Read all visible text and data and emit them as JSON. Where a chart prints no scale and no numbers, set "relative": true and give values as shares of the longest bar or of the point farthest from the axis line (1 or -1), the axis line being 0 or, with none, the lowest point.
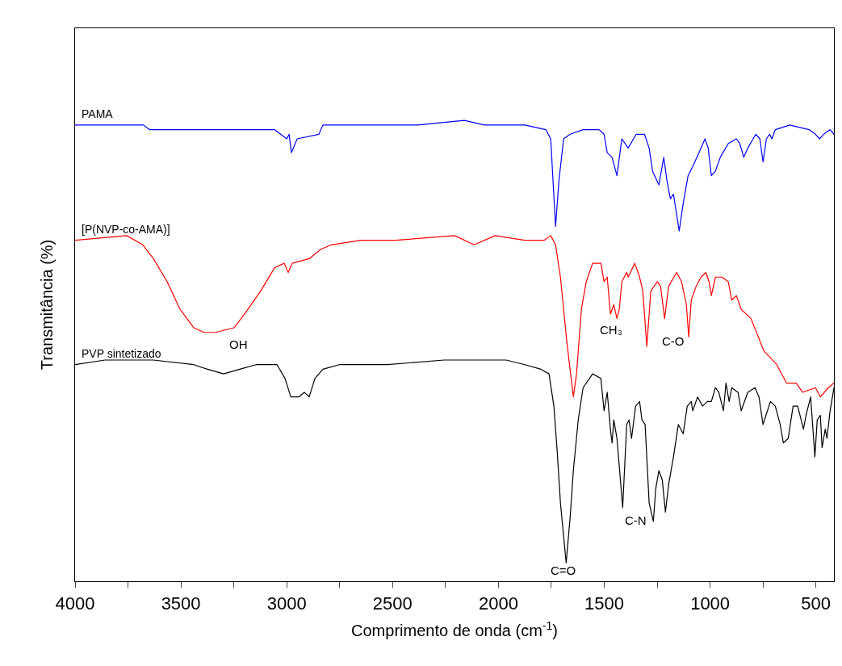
{
  "chart_data": {
    "type": "line",
    "relative": true,
    "xlabel": "Comprimento de onda (cm$^{-1}$)",
    "ylabel": "Transmitância (%)",
    "xlim": [
      4000,
      415
    ],
    "xticks": [
      4000,
      {
        "value": 3750,
        "label": null
      },
      3500,
      {
        "value": 3250,
        "label": null
      },
      3000,
      {
        "value": 2750,
        "label": null
      },
      2500,
      {
        "value": 2250,
        "label": null
      },
      2000,
      {
        "value": 1750,
        "label": null
      },
      1500,
      {
        "value": 1250,
        "label": null
      },
      1000,
      {
        "value": 750,
        "label": null
      },
      500
    ],
    "legend": false,
    "marker": "none",
    "line_style": "solid",
    "series": [
      {
        "name": "PAMA",
        "color": "#0000ff",
        "x": [
          4000,
          3676,
          3649,
          3058,
          3000,
          2989,
          2978,
          2951,
          2848,
          2829,
          2382,
          2161,
          2066,
          1913,
          1875,
          1776,
          1753,
          1730,
          1714,
          1692,
          1661,
          1600,
          1524,
          1501,
          1486,
          1463,
          1440,
          1417,
          1402,
          1387,
          1349,
          1310,
          1288,
          1272,
          1242,
          1219,
          1204,
          1188,
          1173,
          1146,
          1127,
          1104,
          1082,
          1043,
          1024,
          1009,
          994,
          975,
          952,
          914,
          876,
          860,
          841,
          822,
          784,
          765,
          750,
          734,
          719,
          708,
          692,
          624,
          532,
          502,
          483,
          463,
          433,
          415
        ],
        "values": [
          0.99,
          0.99,
          0.98,
          0.98,
          0.96,
          0.97,
          0.93,
          0.96,
          0.97,
          0.99,
          0.99,
          1.0,
          0.99,
          0.99,
          0.99,
          0.98,
          0.96,
          0.77,
          0.87,
          0.96,
          0.97,
          0.98,
          0.98,
          0.97,
          0.93,
          0.92,
          0.88,
          0.96,
          0.95,
          0.94,
          0.97,
          0.97,
          0.94,
          0.89,
          0.86,
          0.92,
          0.87,
          0.83,
          0.84,
          0.76,
          0.82,
          0.88,
          0.9,
          0.94,
          0.96,
          0.94,
          0.88,
          0.89,
          0.92,
          0.95,
          0.96,
          0.95,
          0.92,
          0.94,
          0.97,
          0.96,
          0.91,
          0.96,
          0.97,
          0.96,
          0.98,
          0.99,
          0.98,
          0.97,
          0.96,
          0.97,
          0.98,
          0.97
        ]
      },
      {
        "name": "[P(NVP-co-AMA)]",
        "color": "#ff0000",
        "x": [
          4000,
          3756,
          3680,
          3630,
          3565,
          3504,
          3439,
          3390,
          3337,
          3249,
          3199,
          3123,
          3058,
          3012,
          2993,
          2974,
          2894,
          2840,
          2791,
          2650,
          2485,
          2207,
          2115,
          2016,
          1875,
          1783,
          1753,
          1730,
          1707,
          1677,
          1646,
          1631,
          1608,
          1585,
          1555,
          1516,
          1501,
          1486,
          1471,
          1455,
          1440,
          1429,
          1417,
          1394,
          1387,
          1356,
          1333,
          1318,
          1299,
          1280,
          1249,
          1234,
          1215,
          1196,
          1158,
          1135,
          1112,
          1101,
          1089,
          1066,
          1043,
          1020,
          1005,
          994,
          975,
          944,
          914,
          898,
          876,
          853,
          807,
          746,
          685,
          639,
          593,
          563,
          502,
          479,
          441,
          415
        ],
        "values": [
          0.74,
          0.75,
          0.73,
          0.7,
          0.65,
          0.59,
          0.55,
          0.54,
          0.54,
          0.55,
          0.58,
          0.63,
          0.68,
          0.69,
          0.67,
          0.69,
          0.7,
          0.72,
          0.73,
          0.74,
          0.74,
          0.75,
          0.73,
          0.75,
          0.74,
          0.74,
          0.75,
          0.73,
          0.66,
          0.52,
          0.4,
          0.45,
          0.59,
          0.65,
          0.69,
          0.69,
          0.65,
          0.66,
          0.58,
          0.6,
          0.57,
          0.59,
          0.65,
          0.67,
          0.66,
          0.69,
          0.66,
          0.63,
          0.51,
          0.63,
          0.65,
          0.64,
          0.57,
          0.64,
          0.67,
          0.65,
          0.6,
          0.53,
          0.61,
          0.64,
          0.66,
          0.67,
          0.65,
          0.62,
          0.66,
          0.66,
          0.65,
          0.61,
          0.62,
          0.59,
          0.57,
          0.5,
          0.47,
          0.43,
          0.43,
          0.41,
          0.42,
          0.4,
          0.42,
          0.43
        ]
      },
      {
        "name": "PVP sintetizado",
        "color": "#000000",
        "x": [
          4000,
          3859,
          3630,
          3439,
          3374,
          3298,
          3222,
          3145,
          3046,
          3008,
          2981,
          2943,
          2917,
          2894,
          2867,
          2829,
          2752,
          2524,
          2257,
          1963,
          1875,
          1799,
          1761,
          1738,
          1722,
          1707,
          1680,
          1661,
          1646,
          1623,
          1600,
          1555,
          1516,
          1501,
          1486,
          1471,
          1463,
          1455,
          1440,
          1413,
          1394,
          1383,
          1371,
          1352,
          1333,
          1322,
          1307,
          1288,
          1268,
          1257,
          1242,
          1226,
          1211,
          1196,
          1173,
          1150,
          1127,
          1108,
          1089,
          1082,
          1059,
          1036,
          1013,
          994,
          975,
          959,
          937,
          925,
          910,
          898,
          868,
          853,
          822,
          788,
          769,
          750,
          715,
          692,
          669,
          654,
          631,
          608,
          586,
          559,
          547,
          525,
          505,
          494,
          479,
          471,
          456,
          448,
          433,
          415
        ],
        "values": [
          0.47,
          0.48,
          0.48,
          0.47,
          0.46,
          0.45,
          0.46,
          0.47,
          0.47,
          0.44,
          0.4,
          0.4,
          0.41,
          0.4,
          0.44,
          0.46,
          0.47,
          0.47,
          0.48,
          0.48,
          0.47,
          0.46,
          0.45,
          0.38,
          0.28,
          0.17,
          0.04,
          0.14,
          0.24,
          0.35,
          0.42,
          0.45,
          0.44,
          0.37,
          0.41,
          0.33,
          0.3,
          0.35,
          0.31,
          0.16,
          0.34,
          0.35,
          0.31,
          0.38,
          0.39,
          0.35,
          0.34,
          0.17,
          0.13,
          0.2,
          0.24,
          0.22,
          0.15,
          0.21,
          0.27,
          0.34,
          0.32,
          0.38,
          0.39,
          0.37,
          0.4,
          0.38,
          0.39,
          0.39,
          0.42,
          0.41,
          0.37,
          0.43,
          0.39,
          0.42,
          0.41,
          0.37,
          0.41,
          0.42,
          0.4,
          0.34,
          0.39,
          0.38,
          0.34,
          0.3,
          0.31,
          0.38,
          0.38,
          0.33,
          0.36,
          0.4,
          0.27,
          0.35,
          0.36,
          0.29,
          0.33,
          0.31,
          0.37,
          0.42
        ]
      }
    ],
    "annotations": [
      "OH",
      "CH₃",
      "C-O",
      "C=O",
      "C-N"
    ]
  }
}
